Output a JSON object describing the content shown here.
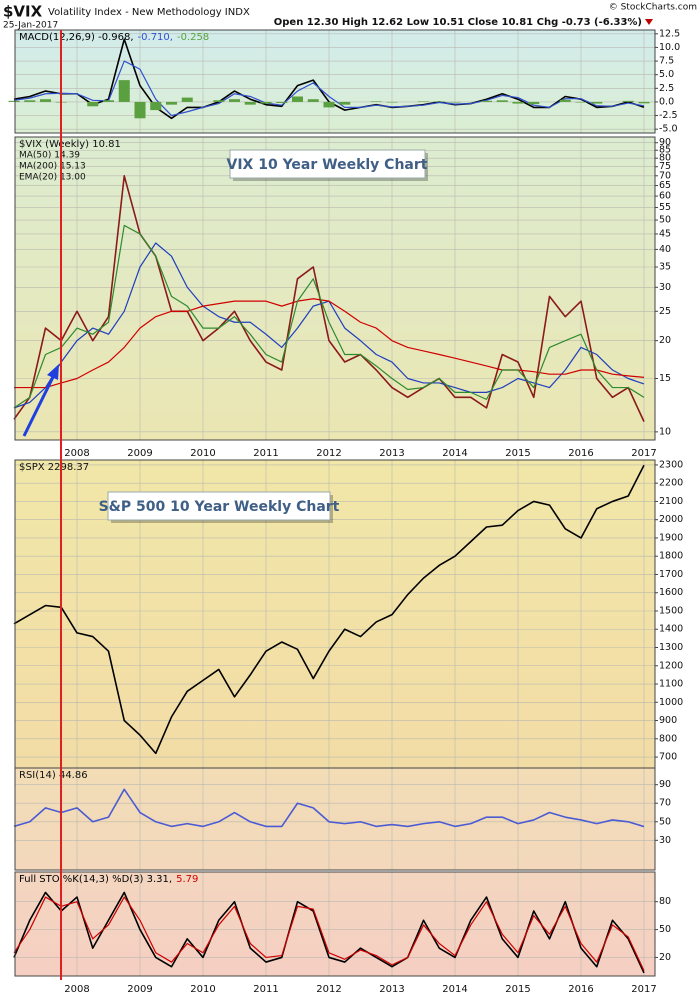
{
  "header": {
    "symbol": "$VIX",
    "name": "Volatility Index - New Methodology INDX",
    "date": "25-Jan-2017",
    "quote": "Open 12.30  High 12.62  Low 10.51  Close 10.81  Chg -0.73 (-6.33%)",
    "source": "© StockCharts.com"
  },
  "chart_data": [
    {
      "type": "line",
      "legend": "inline",
      "grid": true,
      "ylim": [
        -5.7,
        13.2
      ],
      "yticks": [
        {
          "value": 12.5,
          "label": "12.5"
        },
        {
          "value": 10,
          "label": "10.0"
        },
        {
          "value": 7.5,
          "label": "7.5"
        },
        {
          "value": 5,
          "label": "5.0"
        },
        {
          "value": 2.5,
          "label": "2.5"
        },
        {
          "value": 0,
          "label": "0.0"
        },
        {
          "value": -2.5,
          "label": "-2.5"
        },
        {
          "value": -5,
          "label": "-5.0"
        }
      ],
      "series": [
        {
          "name": "MACD(12,26,9) -0.968,",
          "color": "#000000",
          "type": "line",
          "values": [
            0.5,
            1,
            2,
            1.5,
            1.5,
            -0.5,
            0.5,
            11.5,
            3,
            -1,
            -3,
            -1,
            -1,
            0,
            2,
            0.5,
            -0.5,
            -0.8,
            3,
            4,
            0,
            -1.5,
            -1,
            -0.5,
            -1,
            -0.8,
            -0.5,
            0,
            -0.5,
            -0.3,
            0.5,
            1.5,
            0.5,
            -1,
            -1,
            1,
            0.5,
            -1,
            -0.8,
            0,
            -0.968
          ]
        },
        {
          "name": "-0.710,",
          "color": "#3050d0",
          "type": "line",
          "values": [
            0.3,
            0.7,
            1.5,
            1.6,
            1.5,
            0.3,
            0.2,
            7.5,
            6,
            0.5,
            -2.5,
            -1.8,
            -1,
            -0.3,
            1.5,
            1,
            -0.2,
            -0.6,
            2,
            3.5,
            1,
            -1,
            -1,
            -0.6,
            -0.9,
            -0.8,
            -0.6,
            -0.1,
            -0.4,
            -0.3,
            0.3,
            1.2,
            0.8,
            -0.6,
            -1,
            0.6,
            0.6,
            -0.7,
            -0.8,
            -0.2,
            -0.71
          ]
        },
        {
          "name": "-0.258",
          "color": "#5aa040",
          "type": "bar",
          "values": [
            0.2,
            0.3,
            0.5,
            -0.1,
            0,
            -0.8,
            0.3,
            4,
            -3,
            -1.5,
            -0.5,
            0.8,
            0,
            0.3,
            0.5,
            -0.5,
            -0.3,
            -0.2,
            1,
            0.5,
            -1,
            -0.5,
            0,
            0.1,
            -0.1,
            0,
            0.1,
            0.1,
            -0.1,
            0,
            0.2,
            0.3,
            -0.3,
            -0.4,
            0,
            0.4,
            -0.1,
            -0.3,
            0,
            0.2,
            -0.258
          ]
        }
      ]
    },
    {
      "type": "line",
      "legend": "stacked",
      "log_scale": true,
      "grid": true,
      "annotation": "VIX 10 Year Weekly Chart",
      "categories": [
        null,
        null,
        null,
        null,
        "2008",
        null,
        null,
        null,
        "2009",
        null,
        null,
        null,
        "2010",
        null,
        null,
        null,
        "2011",
        null,
        null,
        null,
        "2012",
        null,
        null,
        null,
        "2013",
        null,
        null,
        null,
        "2014",
        null,
        null,
        null,
        "2015",
        null,
        null,
        null,
        "2016",
        null,
        null,
        null,
        "2017"
      ],
      "ylim": [
        9.4,
        94
      ],
      "yticks": [
        10,
        15,
        20,
        25,
        30,
        35,
        40,
        45,
        50,
        55,
        60,
        65,
        70,
        75,
        80,
        85,
        90
      ],
      "series": [
        {
          "name": "$VIX (Weekly) 10.81",
          "color": "#8b1a1a",
          "values": [
            11,
            13,
            22,
            20,
            25,
            20,
            24,
            70,
            45,
            38,
            25,
            25,
            20,
            22,
            25,
            20,
            17,
            16,
            32,
            35,
            20,
            17,
            18,
            16,
            14,
            13,
            14,
            15,
            13,
            13,
            12,
            18,
            17,
            13,
            28,
            24,
            27,
            15,
            13,
            14,
            10.81
          ]
        },
        {
          "name": "MA(50) 14.39",
          "color": "#1f3fbf",
          "values": [
            12,
            12.5,
            14,
            17,
            20,
            22,
            21,
            25,
            35,
            42,
            38,
            30,
            26,
            24,
            23,
            23,
            21,
            19,
            22,
            26,
            27,
            22,
            20,
            18,
            17,
            15,
            14.5,
            14.5,
            14,
            13.5,
            13.5,
            14,
            15,
            14.5,
            14,
            16,
            19,
            18,
            16,
            15,
            14.39
          ]
        },
        {
          "name": "MA(200) 15.13",
          "color": "#d00000",
          "values": [
            14,
            14,
            14,
            14.5,
            15,
            16,
            17,
            19,
            22,
            24,
            25,
            25,
            26,
            26.5,
            27,
            27,
            27,
            26,
            27,
            27.5,
            27,
            25,
            23,
            22,
            20,
            19,
            18.5,
            18,
            17.5,
            17,
            16.5,
            16,
            16,
            15.8,
            15.5,
            15.5,
            16,
            16,
            15.5,
            15.3,
            15.13
          ]
        },
        {
          "name": "EMA(20) 13.00",
          "color": "#2e8b2e",
          "values": [
            12,
            13,
            18,
            19,
            22,
            21,
            23,
            48,
            45,
            38,
            28,
            26,
            22,
            22,
            24,
            21,
            18,
            17,
            27,
            32,
            23,
            18,
            18,
            16.5,
            15,
            13.8,
            14,
            15,
            13.5,
            13.5,
            12.8,
            16,
            16,
            14,
            19,
            20,
            21,
            16,
            14,
            14,
            13.0
          ]
        }
      ]
    },
    {
      "type": "line",
      "legend": "stacked",
      "grid": true,
      "annotation": "S&P 500 10 Year Weekly Chart",
      "ylim": [
        640,
        2327
      ],
      "yticks": [
        700,
        800,
        900,
        1000,
        1100,
        1200,
        1300,
        1400,
        1500,
        1600,
        1700,
        1800,
        1900,
        2000,
        2100,
        2200,
        2300
      ],
      "series": [
        {
          "name": "$SPX 2298.37",
          "color": "#000000",
          "values": [
            1430,
            1480,
            1530,
            1520,
            1380,
            1360,
            1280,
            900,
            820,
            720,
            920,
            1060,
            1120,
            1180,
            1030,
            1150,
            1280,
            1330,
            1290,
            1130,
            1280,
            1400,
            1360,
            1440,
            1480,
            1590,
            1680,
            1750,
            1800,
            1880,
            1960,
            1970,
            2050,
            2100,
            2080,
            1950,
            1900,
            2060,
            2100,
            2130,
            2298.37
          ]
        }
      ]
    },
    {
      "type": "line",
      "legend": "stacked",
      "grid": true,
      "ylim": [
        -2,
        108
      ],
      "yticks": [
        90,
        70,
        50,
        30
      ],
      "series": [
        {
          "name": "RSI(14) 44.86",
          "color": "#4a5bd4",
          "values": [
            45,
            50,
            65,
            60,
            65,
            50,
            55,
            85,
            60,
            50,
            45,
            48,
            45,
            50,
            60,
            50,
            45,
            45,
            70,
            65,
            50,
            48,
            50,
            45,
            47,
            45,
            48,
            50,
            45,
            48,
            55,
            55,
            48,
            52,
            60,
            55,
            52,
            48,
            52,
            50,
            44.86
          ]
        }
      ]
    },
    {
      "type": "line",
      "legend": "inline",
      "grid": true,
      "categories": [
        null,
        null,
        null,
        null,
        "2008",
        null,
        null,
        null,
        "2009",
        null,
        null,
        null,
        "2010",
        null,
        null,
        null,
        "2011",
        null,
        null,
        null,
        "2012",
        null,
        null,
        null,
        "2013",
        null,
        null,
        null,
        "2014",
        null,
        null,
        null,
        "2015",
        null,
        null,
        null,
        "2016",
        null,
        null,
        null,
        "2017"
      ],
      "ylim": [
        0,
        112
      ],
      "yticks": [
        80,
        50,
        20
      ],
      "series": [
        {
          "name": "Full STO %K(14,3) %D(3) 3.31,",
          "color": "#000000",
          "values": [
            20,
            60,
            90,
            70,
            85,
            30,
            60,
            90,
            50,
            20,
            10,
            40,
            20,
            60,
            80,
            30,
            15,
            20,
            80,
            70,
            20,
            15,
            30,
            20,
            10,
            20,
            60,
            30,
            20,
            60,
            85,
            40,
            20,
            70,
            40,
            80,
            30,
            10,
            60,
            40,
            3.31
          ]
        },
        {
          "name": "5.79",
          "color": "#d00000",
          "values": [
            25,
            50,
            85,
            75,
            80,
            40,
            55,
            85,
            60,
            25,
            15,
            35,
            25,
            55,
            75,
            35,
            20,
            22,
            75,
            72,
            25,
            18,
            28,
            22,
            12,
            20,
            55,
            35,
            22,
            55,
            80,
            45,
            25,
            65,
            45,
            75,
            35,
            15,
            55,
            42,
            5.79
          ]
        }
      ]
    }
  ]
}
